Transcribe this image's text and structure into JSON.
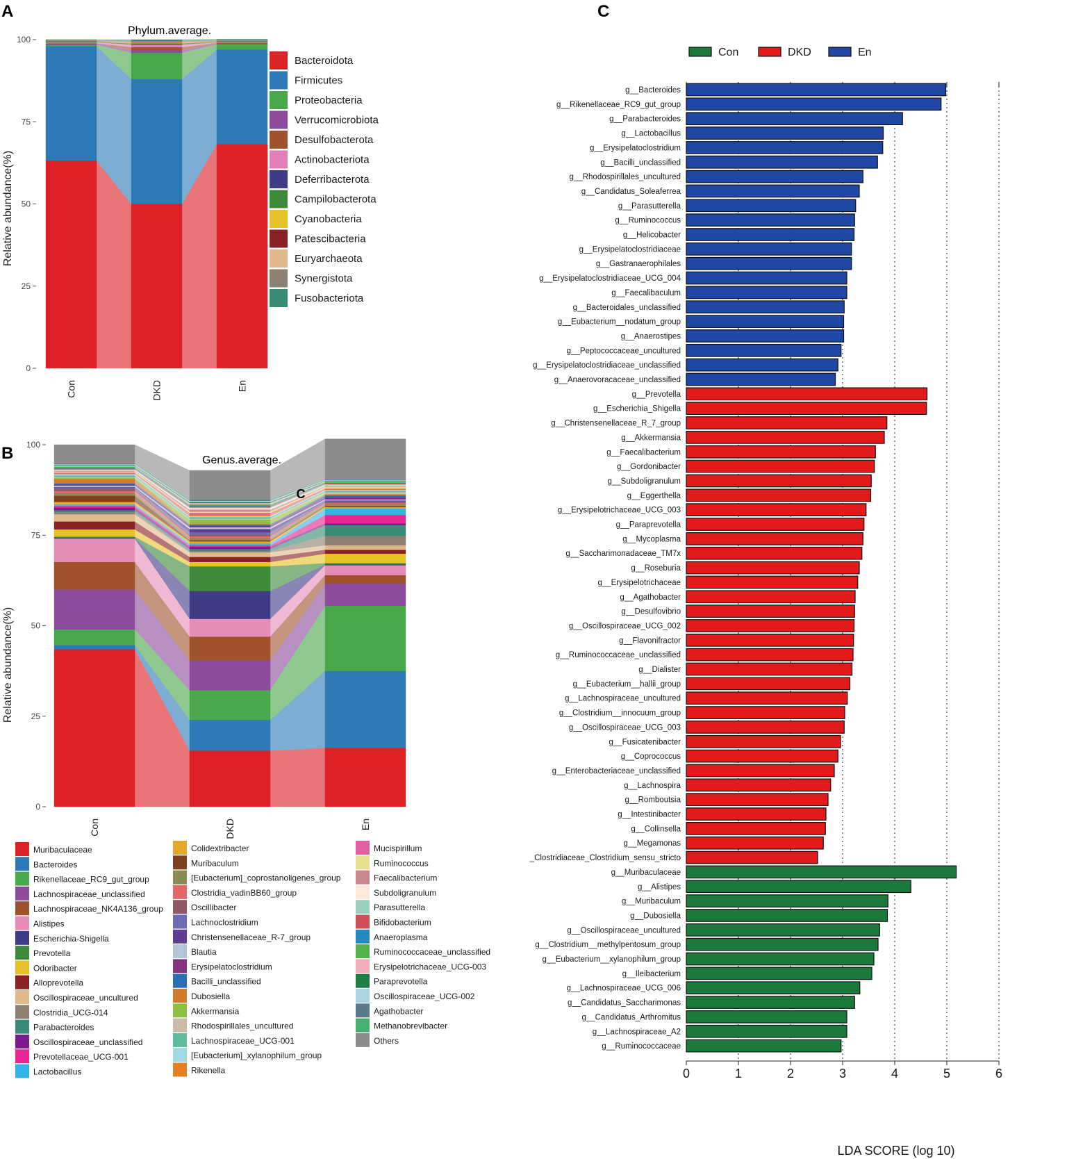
{
  "panels": {
    "A": "A",
    "B": "B",
    "C": "C"
  },
  "stray_label": "C",
  "colors": {
    "Con": "#1b7a3b",
    "DKD": "#e31a1c",
    "En": "#1f47a3",
    "phyla": [
      "#dc2127",
      "#2d7ab6",
      "#4aa84c",
      "#8c4b9b",
      "#a0522d",
      "#e27fb4",
      "#403b86",
      "#3e8a3a",
      "#e5c228",
      "#892226",
      "#e1b98d",
      "#8e8072",
      "#3a8b75"
    ],
    "genera": [
      "#dc2127",
      "#2d7ab6",
      "#4aa84c",
      "#8c4b9b",
      "#a0522d",
      "#e58cb8",
      "#403b86",
      "#3e8a3a",
      "#e5c228",
      "#892226",
      "#e1b98d",
      "#8e8072",
      "#3a8b75",
      "#7b1b8d",
      "#e6278e",
      "#35b5e6",
      "#e3a92a",
      "#7c3f21",
      "#8b8a52",
      "#e56666",
      "#8e5a66",
      "#6b6cb3",
      "#5f3d92",
      "#b4c4d7",
      "#83347e",
      "#2a6eb4",
      "#d37b2b",
      "#8cc13f",
      "#cbbcaa",
      "#5ebc9c",
      "#a3d9e5",
      "#e67e22",
      "#e15f9f",
      "#e8e08f",
      "#c9888e",
      "#fde9d9",
      "#9ad1be",
      "#cd5059",
      "#238bc1",
      "#52b04e",
      "#f4aebb",
      "#1f7d46",
      "#aad3e3",
      "#5b7a8c",
      "#46b06e",
      "#8c8c8c"
    ]
  },
  "chart_data": [
    {
      "id": "A",
      "type": "bar",
      "stacked": true,
      "title": "Phylum.average.",
      "xlabel": "",
      "ylabel": "Relative abundance(%)",
      "ylim": [
        0,
        100
      ],
      "yticks": [
        "0",
        "25",
        "50",
        "75",
        "100"
      ],
      "categories": [
        "Con",
        "DKD",
        "En"
      ],
      "series": [
        {
          "name": "Bacteroidota",
          "values": [
            63.2,
            50.0,
            68.2
          ]
        },
        {
          "name": "Firmicutes",
          "values": [
            34.8,
            38.0,
            28.8
          ]
        },
        {
          "name": "Proteobacteria",
          "values": [
            0.4,
            8.0,
            1.6
          ]
        },
        {
          "name": "Verrucomicrobiota",
          "values": [
            0.3,
            0.8,
            0.2
          ]
        },
        {
          "name": "Desulfobacterota",
          "values": [
            0.2,
            0.9,
            0.2
          ]
        },
        {
          "name": "Actinobacteriota",
          "values": [
            0.3,
            0.8,
            0.2
          ]
        },
        {
          "name": "Deferribacterota",
          "values": [
            0.1,
            0.2,
            0.1
          ]
        },
        {
          "name": "Campilobacterota",
          "values": [
            0.1,
            0.2,
            0.1
          ]
        },
        {
          "name": "Cyanobacteria",
          "values": [
            0.1,
            0.3,
            0.1
          ]
        },
        {
          "name": "Patescibacteria",
          "values": [
            0.1,
            0.2,
            0.1
          ]
        },
        {
          "name": "Euryarchaeota",
          "values": [
            0.1,
            0.1,
            0.1
          ]
        },
        {
          "name": "Synergistota",
          "values": [
            0.1,
            0.1,
            0.1
          ]
        },
        {
          "name": "Fusobacteriota",
          "values": [
            0.2,
            0.4,
            0.3
          ]
        }
      ]
    },
    {
      "id": "B",
      "type": "bar",
      "stacked": true,
      "title": "Genus.average.",
      "xlabel": "",
      "ylabel": "Relative abundance(%)",
      "ylim": [
        0,
        100
      ],
      "yticks": [
        "0",
        "25",
        "50",
        "75",
        "100"
      ],
      "categories": [
        "Con",
        "DKD",
        "En"
      ],
      "series": [
        {
          "name": "Muribaculaceae",
          "values": [
            43.5,
            15.5,
            16.3
          ]
        },
        {
          "name": "Bacteroides",
          "values": [
            1.2,
            8.5,
            21.2
          ]
        },
        {
          "name": "Rikenellaceae_RC9_gut_group",
          "values": [
            4.3,
            8.2,
            18.0
          ]
        },
        {
          "name": "Lachnospiraceae_unclassified",
          "values": [
            11.0,
            8.2,
            6.1
          ]
        },
        {
          "name": "Lachnospiraceae_NK4A136_group",
          "values": [
            7.6,
            6.6,
            2.4
          ]
        },
        {
          "name": "Alistipes",
          "values": [
            6.5,
            4.9,
            2.7
          ]
        },
        {
          "name": "Escherichia-Shigella",
          "values": [
            0.2,
            7.7,
            0.2
          ]
        },
        {
          "name": "Prevotella",
          "values": [
            0.3,
            6.8,
            0.4
          ]
        },
        {
          "name": "Odoribacter",
          "values": [
            2.0,
            1.2,
            2.6
          ]
        },
        {
          "name": "Alloprevotella",
          "values": [
            2.2,
            1.4,
            1.1
          ]
        },
        {
          "name": "Oscillospiraceae_uncultured",
          "values": [
            2.0,
            1.3,
            1.2
          ]
        },
        {
          "name": "Clostridia_UCG-014",
          "values": [
            0.6,
            0.4,
            2.6
          ]
        },
        {
          "name": "Parabacteroides",
          "values": [
            0.5,
            0.5,
            3.0
          ]
        },
        {
          "name": "Oscillospiraceae_unclassified",
          "values": [
            0.7,
            0.6,
            0.5
          ]
        },
        {
          "name": "Prevotellaceae_UCG-001",
          "values": [
            0.5,
            0.4,
            2.3
          ]
        },
        {
          "name": "Lactobacillus",
          "values": [
            0.4,
            0.5,
            1.8
          ]
        },
        {
          "name": "Colidextribacter",
          "values": [
            0.7,
            0.6,
            0.4
          ]
        },
        {
          "name": "Muribaculum",
          "values": [
            1.7,
            0.3,
            0.3
          ]
        },
        {
          "name": "[Eubacterium]_coprostanoligenes_group",
          "values": [
            0.7,
            0.6,
            0.5
          ]
        },
        {
          "name": "Clostridia_vadinBB60_group",
          "values": [
            0.6,
            0.5,
            0.3
          ]
        },
        {
          "name": "Oscillibacter",
          "values": [
            0.6,
            0.5,
            0.3
          ]
        },
        {
          "name": "Lachnoclostridium",
          "values": [
            0.3,
            0.6,
            0.2
          ]
        },
        {
          "name": "Christensenellaceae_R-7_group",
          "values": [
            0.2,
            0.9,
            0.2
          ]
        },
        {
          "name": "Blautia",
          "values": [
            0.4,
            0.5,
            0.3
          ]
        },
        {
          "name": "Erysipelatoclostridium",
          "values": [
            0.3,
            0.4,
            0.6
          ]
        },
        {
          "name": "Bacilli_unclassified",
          "values": [
            0.3,
            0.3,
            0.5
          ]
        },
        {
          "name": "Dubosiella",
          "values": [
            1.3,
            0.2,
            0.2
          ]
        },
        {
          "name": "Akkermansia",
          "values": [
            0.2,
            1.2,
            0.2
          ]
        },
        {
          "name": "Rhodospirillales_uncultured",
          "values": [
            0.3,
            0.3,
            0.5
          ]
        },
        {
          "name": "Lachnospiraceae_UCG-001",
          "values": [
            0.4,
            0.4,
            0.3
          ]
        },
        {
          "name": "[Eubacterium]_xylanophilum_group",
          "values": [
            0.4,
            0.3,
            0.3
          ]
        },
        {
          "name": "Rikenella",
          "values": [
            0.2,
            0.4,
            0.2
          ]
        },
        {
          "name": "Mucispirillum",
          "values": [
            0.2,
            0.5,
            0.2
          ]
        },
        {
          "name": "Ruminococcus",
          "values": [
            0.3,
            0.3,
            0.4
          ]
        },
        {
          "name": "Faecalibacterium",
          "values": [
            0.2,
            0.6,
            0.2
          ]
        },
        {
          "name": "Subdoligranulum",
          "values": [
            0.2,
            0.4,
            0.2
          ]
        },
        {
          "name": "Parasutterella",
          "values": [
            0.2,
            0.2,
            0.4
          ]
        },
        {
          "name": "Bifidobacterium",
          "values": [
            0.2,
            0.3,
            0.2
          ]
        },
        {
          "name": "Anaeroplasma",
          "values": [
            0.2,
            0.2,
            0.2
          ]
        },
        {
          "name": "Ruminococcaceae_unclassified",
          "values": [
            0.3,
            0.3,
            0.2
          ]
        },
        {
          "name": "Erysipelotrichaceae_UCG-003",
          "values": [
            0.2,
            0.4,
            0.2
          ]
        },
        {
          "name": "Paraprevotella",
          "values": [
            0.2,
            0.3,
            0.2
          ]
        },
        {
          "name": "Oscillospiraceae_UCG-002",
          "values": [
            0.3,
            0.3,
            0.2
          ]
        },
        {
          "name": "Agathobacter",
          "values": [
            0.2,
            0.3,
            0.2
          ]
        },
        {
          "name": "Methanobrevibacter",
          "values": [
            0.1,
            0.1,
            0.1
          ]
        },
        {
          "name": "Others",
          "values": [
            5.1,
            8.0,
            11.0
          ]
        }
      ]
    },
    {
      "id": "C",
      "type": "bar",
      "orientation": "horizontal",
      "title": "",
      "xlabel": "LDA SCORE (log 10)",
      "ylabel": "",
      "xlim": [
        0,
        6
      ],
      "xticks": [
        "0",
        "1",
        "2",
        "3",
        "4",
        "5",
        "6"
      ],
      "legend": [
        {
          "name": "Con",
          "group": "Con"
        },
        {
          "name": "DKD",
          "group": "DKD"
        },
        {
          "name": "En",
          "group": "En"
        }
      ],
      "bars": [
        {
          "label": "g__Bacteroides",
          "value": 4.98,
          "group": "En"
        },
        {
          "label": "g__Rikenellaceae_RC9_gut_group",
          "value": 4.89,
          "group": "En"
        },
        {
          "label": "g__Parabacteroides",
          "value": 4.15,
          "group": "En"
        },
        {
          "label": "g__Lactobacillus",
          "value": 3.78,
          "group": "En"
        },
        {
          "label": "g__Erysipelatoclostridium",
          "value": 3.77,
          "group": "En"
        },
        {
          "label": "g__Bacilli_unclassified",
          "value": 3.67,
          "group": "En"
        },
        {
          "label": "g__Rhodospirillales_uncultured",
          "value": 3.39,
          "group": "En"
        },
        {
          "label": "g__Candidatus_Soleaferrea",
          "value": 3.32,
          "group": "En"
        },
        {
          "label": "g__Parasutterella",
          "value": 3.25,
          "group": "En"
        },
        {
          "label": "g__Ruminococcus",
          "value": 3.23,
          "group": "En"
        },
        {
          "label": "g__Helicobacter",
          "value": 3.22,
          "group": "En"
        },
        {
          "label": "g__Erysipelatoclostridiaceae",
          "value": 3.17,
          "group": "En"
        },
        {
          "label": "g__Gastranaerophilales",
          "value": 3.17,
          "group": "En"
        },
        {
          "label": "g__Erysipelatoclostridiaceae_UCG_004",
          "value": 3.08,
          "group": "En"
        },
        {
          "label": "g__Faecalibaculum",
          "value": 3.08,
          "group": "En"
        },
        {
          "label": "g__Bacteroidales_unclassified",
          "value": 3.03,
          "group": "En"
        },
        {
          "label": "g__Eubacterium__nodatum_group",
          "value": 3.02,
          "group": "En"
        },
        {
          "label": "g__Anaerostipes",
          "value": 3.02,
          "group": "En"
        },
        {
          "label": "g__Peptococcaceae_uncultured",
          "value": 2.97,
          "group": "En"
        },
        {
          "label": "g__Erysipelatoclostridiaceae_unclassified",
          "value": 2.91,
          "group": "En"
        },
        {
          "label": "g__Anaerovoracaceae_unclassified",
          "value": 2.86,
          "group": "En"
        },
        {
          "label": "g__Prevotella",
          "value": 4.62,
          "group": "DKD"
        },
        {
          "label": "g__Escherichia_Shigella",
          "value": 4.61,
          "group": "DKD"
        },
        {
          "label": "g__Christensenellaceae_R_7_group",
          "value": 3.85,
          "group": "DKD"
        },
        {
          "label": "g__Akkermansia",
          "value": 3.8,
          "group": "DKD"
        },
        {
          "label": "g__Faecalibacterium",
          "value": 3.63,
          "group": "DKD"
        },
        {
          "label": "g__Gordonibacter",
          "value": 3.61,
          "group": "DKD"
        },
        {
          "label": "g__Subdoligranulum",
          "value": 3.55,
          "group": "DKD"
        },
        {
          "label": "g__Eggerthella",
          "value": 3.54,
          "group": "DKD"
        },
        {
          "label": "g__Erysipelotrichaceae_UCG_003",
          "value": 3.45,
          "group": "DKD"
        },
        {
          "label": "g__Paraprevotella",
          "value": 3.41,
          "group": "DKD"
        },
        {
          "label": "g__Mycoplasma",
          "value": 3.39,
          "group": "DKD"
        },
        {
          "label": "g__Saccharimonadaceae_TM7x",
          "value": 3.37,
          "group": "DKD"
        },
        {
          "label": "g__Roseburia",
          "value": 3.32,
          "group": "DKD"
        },
        {
          "label": "g__Erysipelotrichaceae",
          "value": 3.29,
          "group": "DKD"
        },
        {
          "label": "g__Agathobacter",
          "value": 3.24,
          "group": "DKD"
        },
        {
          "label": "g__Desulfovibrio",
          "value": 3.23,
          "group": "DKD"
        },
        {
          "label": "g__Oscillospiraceae_UCG_002",
          "value": 3.22,
          "group": "DKD"
        },
        {
          "label": "g__Flavonifractor",
          "value": 3.21,
          "group": "DKD"
        },
        {
          "label": "g__Ruminococcaceae_unclassified",
          "value": 3.2,
          "group": "DKD"
        },
        {
          "label": "g__Dialister",
          "value": 3.18,
          "group": "DKD"
        },
        {
          "label": "g__Eubacterium__hallii_group",
          "value": 3.14,
          "group": "DKD"
        },
        {
          "label": "g__Lachnospiraceae_uncultured",
          "value": 3.09,
          "group": "DKD"
        },
        {
          "label": "g__Clostridium__innocuum_group",
          "value": 3.04,
          "group": "DKD"
        },
        {
          "label": "g__Oscillospiraceae_UCG_003",
          "value": 3.03,
          "group": "DKD"
        },
        {
          "label": "g__Fusicatenibacter",
          "value": 2.96,
          "group": "DKD"
        },
        {
          "label": "g__Coprococcus",
          "value": 2.91,
          "group": "DKD"
        },
        {
          "label": "g__Enterobacteriaceae_unclassified",
          "value": 2.84,
          "group": "DKD"
        },
        {
          "label": "g__Lachnospira",
          "value": 2.77,
          "group": "DKD"
        },
        {
          "label": "g__Romboutsia",
          "value": 2.72,
          "group": "DKD"
        },
        {
          "label": "g__Intestinibacter",
          "value": 2.68,
          "group": "DKD"
        },
        {
          "label": "g__Collinsella",
          "value": 2.67,
          "group": "DKD"
        },
        {
          "label": "g__Megamonas",
          "value": 2.63,
          "group": "DKD"
        },
        {
          "label": "_Clostridiaceae_Clostridium_sensu_stricto",
          "value": 2.52,
          "group": "DKD"
        },
        {
          "label": "g__Muribaculaceae",
          "value": 5.18,
          "group": "Con"
        },
        {
          "label": "g__Alistipes",
          "value": 4.31,
          "group": "Con"
        },
        {
          "label": "g__Muribaculum",
          "value": 3.87,
          "group": "Con"
        },
        {
          "label": "g__Dubosiella",
          "value": 3.86,
          "group": "Con"
        },
        {
          "label": "g__Oscillospiraceae_uncultured",
          "value": 3.71,
          "group": "Con"
        },
        {
          "label": "g__Clostridium__methylpentosum_group",
          "value": 3.68,
          "group": "Con"
        },
        {
          "label": "g__Eubacterium__xylanophilum_group",
          "value": 3.6,
          "group": "Con"
        },
        {
          "label": "g__Ileibacterium",
          "value": 3.56,
          "group": "Con"
        },
        {
          "label": "g__Lachnospiraceae_UCG_006",
          "value": 3.33,
          "group": "Con"
        },
        {
          "label": "g__Candidatus_Saccharimonas",
          "value": 3.23,
          "group": "Con"
        },
        {
          "label": "g__Candidatus_Arthromitus",
          "value": 3.08,
          "group": "Con"
        },
        {
          "label": "g__Lachnospiraceae_A2",
          "value": 3.08,
          "group": "Con"
        },
        {
          "label": "g__Ruminococcaceae",
          "value": 2.97,
          "group": "Con"
        }
      ]
    }
  ]
}
